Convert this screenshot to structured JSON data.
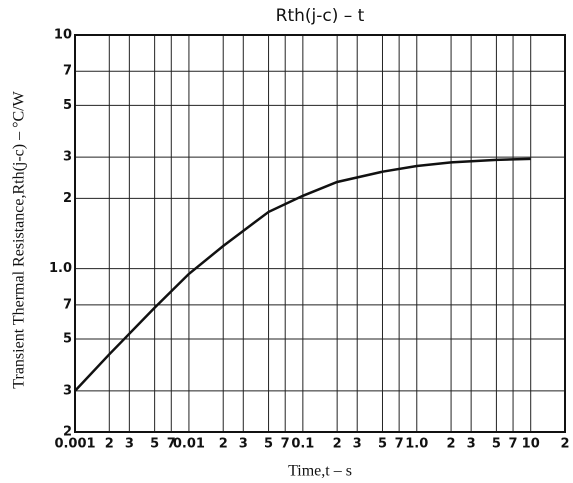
{
  "chart_data": {
    "type": "line",
    "title": "Rth(j-c)  –  t",
    "x_label": "Time,t – s",
    "y_label": "Transient Thermal Resistance,Rth(j-c) – °C/W",
    "xscale": "log",
    "yscale": "log",
    "grid": true,
    "color": "#111111",
    "x": [
      0.001,
      0.002,
      0.005,
      0.01,
      0.02,
      0.05,
      0.1,
      0.2,
      0.5,
      1,
      2,
      5,
      10
    ],
    "values": [
      0.3,
      0.43,
      0.68,
      0.95,
      1.25,
      1.75,
      2.05,
      2.35,
      2.6,
      2.75,
      2.85,
      2.92,
      2.95
    ],
    "xlim": [
      0.001,
      20
    ],
    "ylim": [
      0.2,
      10
    ],
    "xticks": [
      0.001,
      {
        "value": 0.002,
        "label": "2"
      },
      {
        "value": 0.003,
        "label": "3"
      },
      {
        "value": 0.005,
        "label": "5"
      },
      {
        "value": 0.007,
        "label": "7"
      },
      0.01,
      {
        "value": 0.02,
        "label": "2"
      },
      {
        "value": 0.03,
        "label": "3"
      },
      {
        "value": 0.05,
        "label": "5"
      },
      {
        "value": 0.07,
        "label": "7"
      },
      0.1,
      {
        "value": 0.2,
        "label": "2"
      },
      {
        "value": 0.3,
        "label": "3"
      },
      {
        "value": 0.5,
        "label": "5"
      },
      {
        "value": 0.7,
        "label": "7"
      },
      {
        "value": 1,
        "label": "1.0"
      },
      2,
      3,
      5,
      7,
      10,
      {
        "value": 20,
        "label": "2"
      }
    ],
    "yticks": [
      {
        "value": 0.2,
        "label": "2"
      },
      {
        "value": 0.3,
        "label": "3"
      },
      {
        "value": 0.5,
        "label": "5"
      },
      {
        "value": 0.7,
        "label": "7"
      },
      {
        "value": 1,
        "label": "1.0"
      },
      2,
      3,
      5,
      7,
      10
    ]
  }
}
